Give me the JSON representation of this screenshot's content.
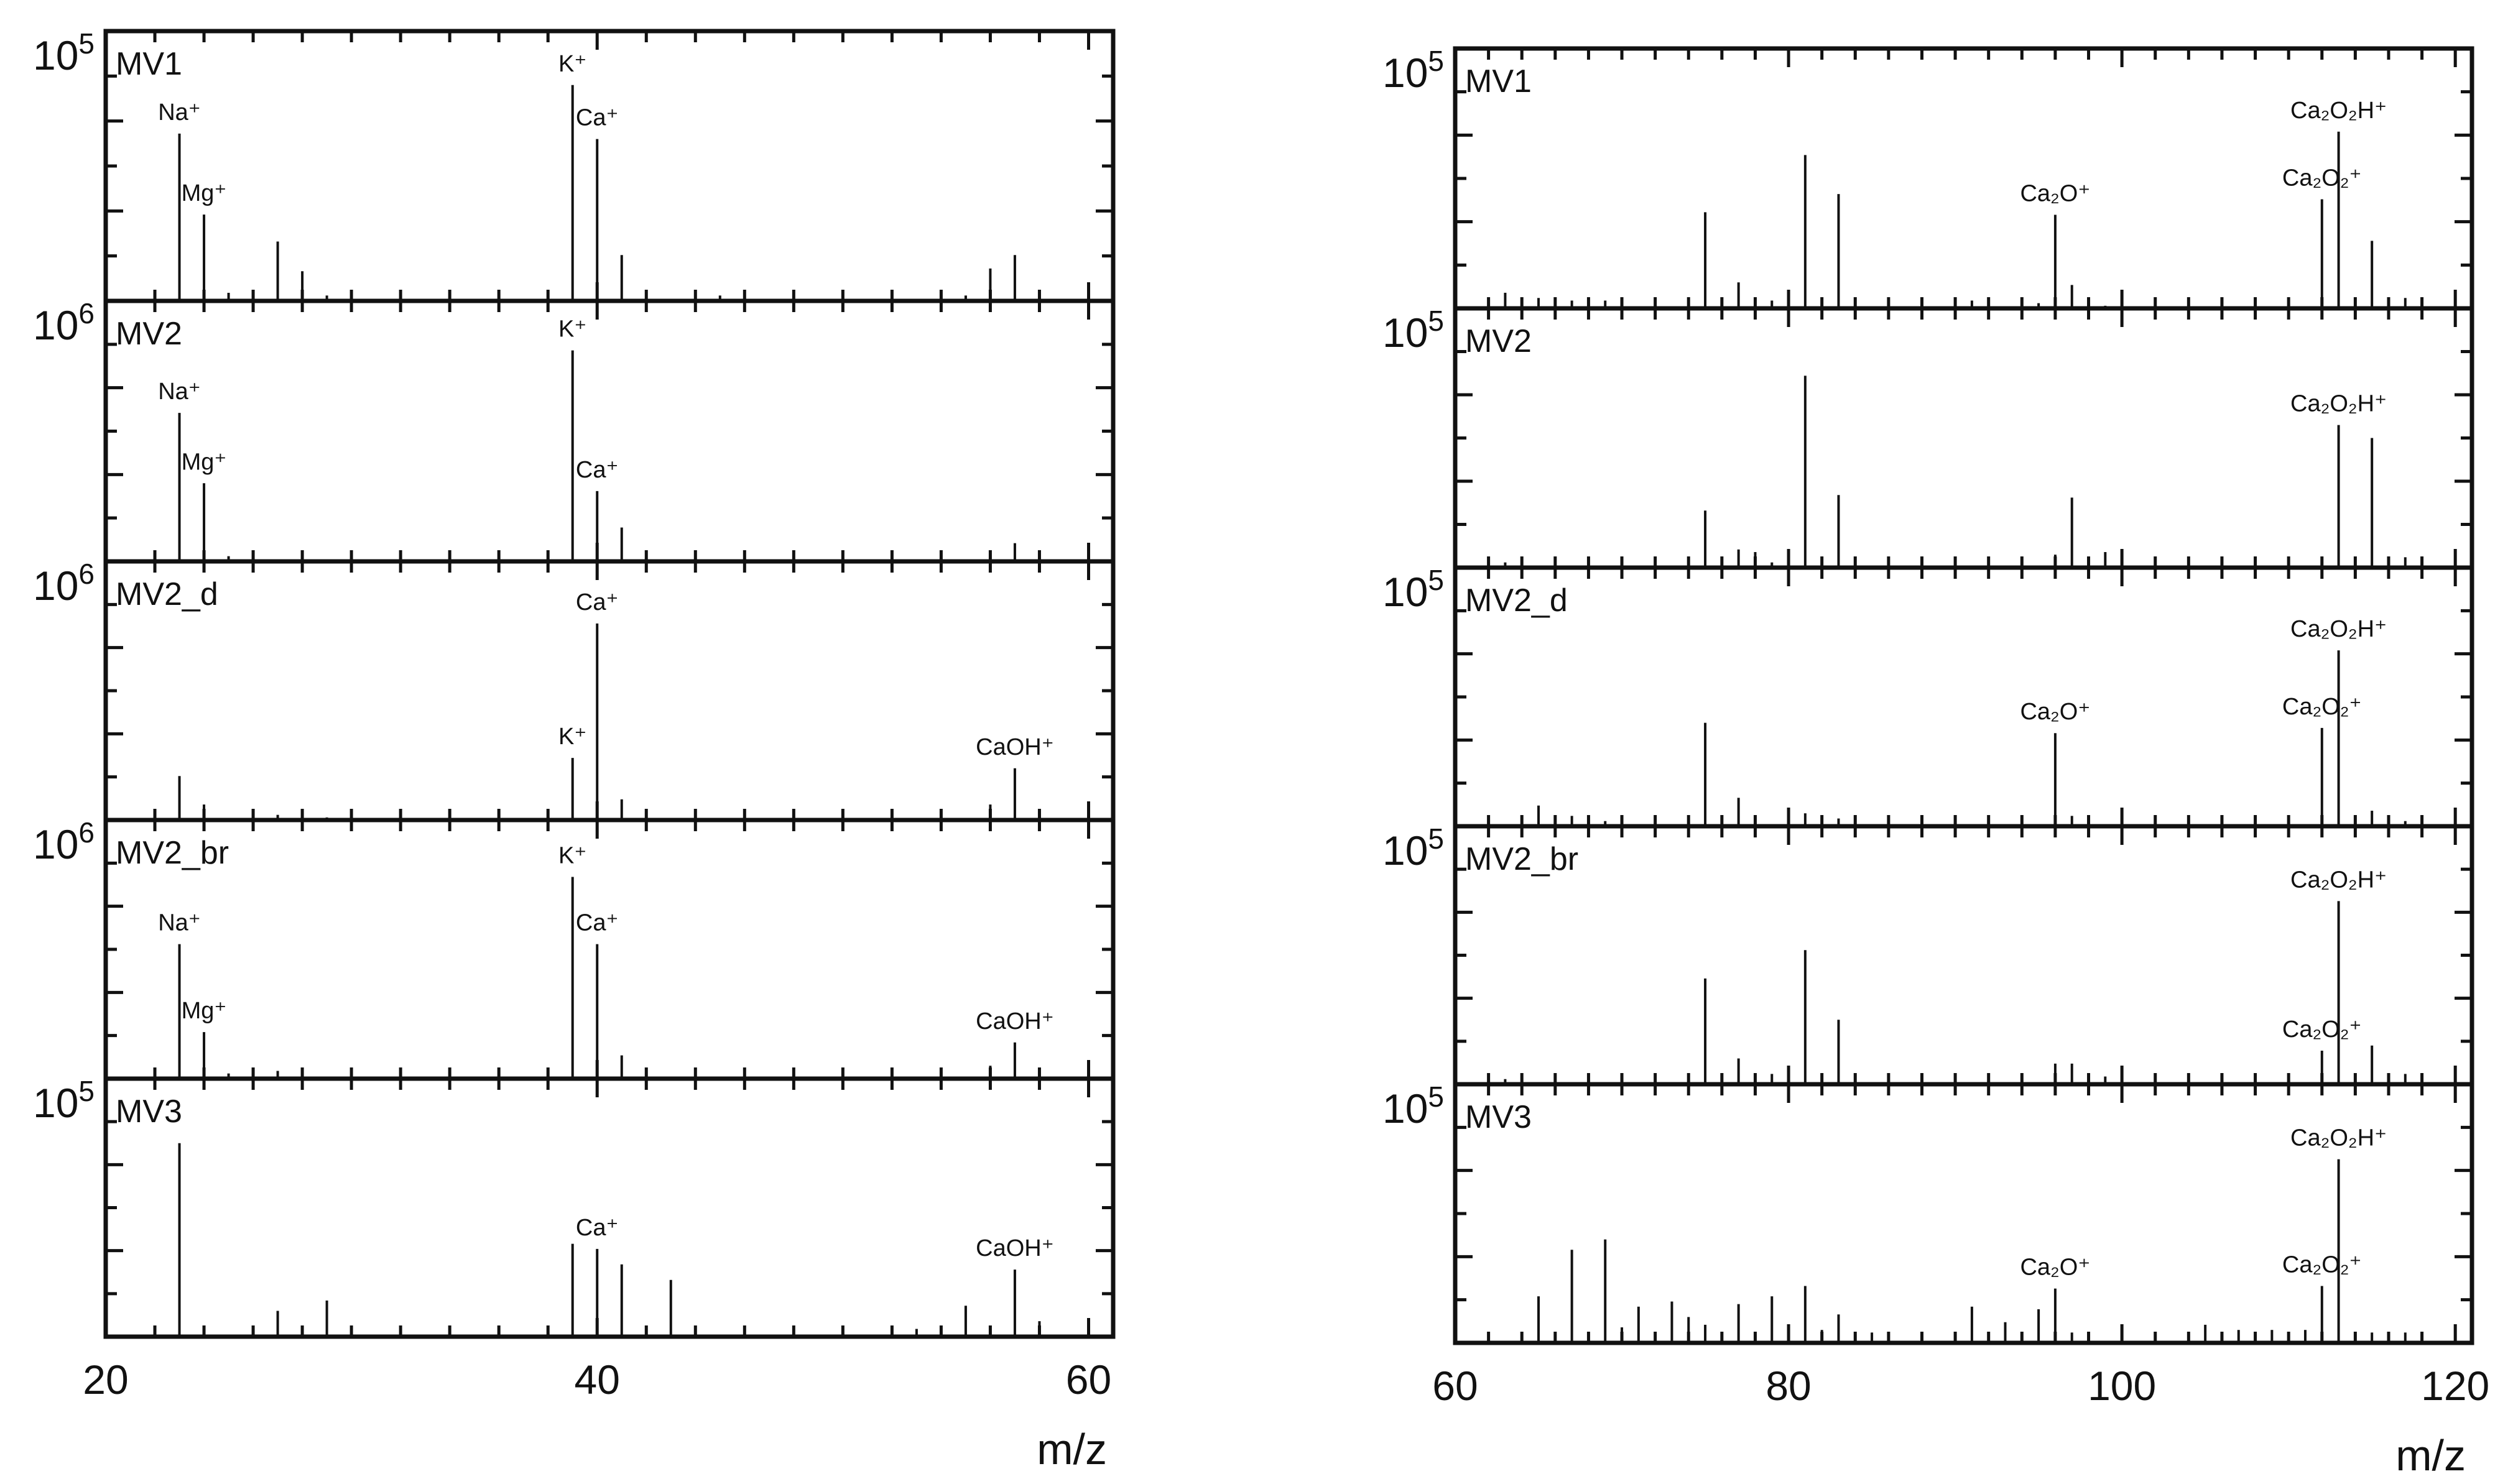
{
  "chart_data": [
    {
      "type": "line",
      "x_ticks": [
        20,
        40,
        60
      ],
      "xlim": [
        20,
        61
      ],
      "xlabel": "m/z",
      "panels": [
        {
          "name": "MV1",
          "ymax_label": "10",
          "ymax_exp": "5",
          "peaks": [
            [
              23,
              0.62
            ],
            [
              24,
              0.32
            ],
            [
              25,
              0.03
            ],
            [
              26,
              0.04
            ],
            [
              27,
              0.22
            ],
            [
              28,
              0.11
            ],
            [
              29,
              0.02
            ],
            [
              39,
              0.8
            ],
            [
              40,
              0.6
            ],
            [
              41,
              0.17
            ],
            [
              44,
              0.01
            ],
            [
              45,
              0.02
            ],
            [
              46,
              0.04
            ],
            [
              55,
              0.02
            ],
            [
              56,
              0.12
            ],
            [
              57,
              0.17
            ]
          ],
          "labels": [
            {
              "text": "Na⁺",
              "x": 23,
              "y": 0.62
            },
            {
              "text": "Mg⁺",
              "x": 24,
              "y": 0.32
            },
            {
              "text": "K⁺",
              "x": 39,
              "y": 0.8
            },
            {
              "text": "Ca⁺",
              "x": 40,
              "y": 0.6
            }
          ]
        },
        {
          "name": "MV2",
          "ymax_label": "10",
          "ymax_exp": "6",
          "peaks": [
            [
              23,
              0.57
            ],
            [
              24,
              0.3
            ],
            [
              25,
              0.02
            ],
            [
              26,
              0.03
            ],
            [
              39,
              0.81
            ],
            [
              40,
              0.27
            ],
            [
              41,
              0.13
            ],
            [
              46,
              0.01
            ],
            [
              56,
              0.02
            ],
            [
              57,
              0.07
            ]
          ],
          "labels": [
            {
              "text": "Na⁺",
              "x": 23,
              "y": 0.57
            },
            {
              "text": "Mg⁺",
              "x": 24,
              "y": 0.3
            },
            {
              "text": "K⁺",
              "x": 39,
              "y": 0.81
            },
            {
              "text": "Ca⁺",
              "x": 40,
              "y": 0.27
            }
          ]
        },
        {
          "name": "MV2_d",
          "ymax_label": "10",
          "ymax_exp": "6",
          "peaks": [
            [
              23,
              0.17
            ],
            [
              24,
              0.06
            ],
            [
              27,
              0.02
            ],
            [
              29,
              0.01
            ],
            [
              39,
              0.24
            ],
            [
              40,
              0.76
            ],
            [
              41,
              0.08
            ],
            [
              56,
              0.06
            ],
            [
              57,
              0.2
            ]
          ],
          "labels": [
            {
              "text": "K⁺",
              "x": 39,
              "y": 0.24
            },
            {
              "text": "Ca⁺",
              "x": 40,
              "y": 0.76
            },
            {
              "text": "CaOH⁺",
              "x": 57,
              "y": 0.2
            }
          ]
        },
        {
          "name": "MV2_br",
          "ymax_label": "10",
          "ymax_exp": "6",
          "peaks": [
            [
              23,
              0.52
            ],
            [
              24,
              0.18
            ],
            [
              25,
              0.02
            ],
            [
              26,
              0.02
            ],
            [
              27,
              0.03
            ],
            [
              28,
              0.03
            ],
            [
              39,
              0.78
            ],
            [
              40,
              0.52
            ],
            [
              41,
              0.09
            ],
            [
              56,
              0.05
            ],
            [
              57,
              0.14
            ]
          ],
          "labels": [
            {
              "text": "Na⁺",
              "x": 23,
              "y": 0.52
            },
            {
              "text": "Mg⁺",
              "x": 24,
              "y": 0.18
            },
            {
              "text": "K⁺",
              "x": 39,
              "y": 0.78
            },
            {
              "text": "Ca⁺",
              "x": 40,
              "y": 0.52
            },
            {
              "text": "CaOH⁺",
              "x": 57,
              "y": 0.14
            }
          ]
        },
        {
          "name": "MV3",
          "ymax_label": "10",
          "ymax_exp": "5",
          "peaks": [
            [
              23,
              0.75
            ],
            [
              27,
              0.1
            ],
            [
              29,
              0.14
            ],
            [
              39,
              0.36
            ],
            [
              40,
              0.34
            ],
            [
              41,
              0.28
            ],
            [
              43,
              0.22
            ],
            [
              53,
              0.03
            ],
            [
              55,
              0.12
            ],
            [
              57,
              0.26
            ],
            [
              58,
              0.06
            ]
          ],
          "labels": [
            {
              "text": "Ca⁺",
              "x": 40,
              "y": 0.34
            },
            {
              "text": "CaOH⁺",
              "x": 57,
              "y": 0.26
            }
          ]
        }
      ]
    },
    {
      "type": "line",
      "x_ticks": [
        60,
        80,
        100,
        120
      ],
      "xlim": [
        60,
        121
      ],
      "xlabel": "m/z",
      "panels": [
        {
          "name": "MV1",
          "ymax_label": "10",
          "ymax_exp": "5",
          "peaks": [
            [
              62,
              0.02
            ],
            [
              63,
              0.06
            ],
            [
              65,
              0.04
            ],
            [
              67,
              0.03
            ],
            [
              69,
              0.03
            ],
            [
              75,
              0.37
            ],
            [
              77,
              0.1
            ],
            [
              78,
              0.03
            ],
            [
              79,
              0.03
            ],
            [
              80,
              0.03
            ],
            [
              81,
              0.59
            ],
            [
              83,
              0.44
            ],
            [
              91,
              0.03
            ],
            [
              95,
              0.02
            ],
            [
              96,
              0.36
            ],
            [
              97,
              0.09
            ],
            [
              98,
              0.02
            ],
            [
              99,
              0.01
            ],
            [
              112,
              0.42
            ],
            [
              113,
              0.68
            ],
            [
              115,
              0.26
            ],
            [
              117,
              0.04
            ]
          ],
          "labels": [
            {
              "text": "Ca₂O⁺",
              "x": 96,
              "y": 0.36
            },
            {
              "text": "Ca₂O₂⁺",
              "x": 112,
              "y": 0.42
            },
            {
              "text": "Ca₂O₂H⁺",
              "x": 113,
              "y": 0.68
            }
          ]
        },
        {
          "name": "MV2",
          "ymax_label": "10",
          "ymax_exp": "5",
          "peaks": [
            [
              62,
              0.02
            ],
            [
              63,
              0.02
            ],
            [
              75,
              0.22
            ],
            [
              77,
              0.07
            ],
            [
              78,
              0.06
            ],
            [
              79,
              0.02
            ],
            [
              81,
              0.74
            ],
            [
              83,
              0.28
            ],
            [
              96,
              0.05
            ],
            [
              97,
              0.27
            ],
            [
              99,
              0.06
            ],
            [
              112,
              0.04
            ],
            [
              113,
              0.55
            ],
            [
              115,
              0.5
            ],
            [
              117,
              0.04
            ]
          ],
          "labels": [
            {
              "text": "Ca₂O₂H⁺",
              "x": 113,
              "y": 0.55
            }
          ]
        },
        {
          "name": "MV2_d",
          "ymax_label": "10",
          "ymax_exp": "5",
          "peaks": [
            [
              65,
              0.08
            ],
            [
              67,
              0.04
            ],
            [
              69,
              0.02
            ],
            [
              75,
              0.4
            ],
            [
              77,
              0.11
            ],
            [
              78,
              0.03
            ],
            [
              81,
              0.05
            ],
            [
              83,
              0.03
            ],
            [
              96,
              0.36
            ],
            [
              97,
              0.04
            ],
            [
              112,
              0.38
            ],
            [
              113,
              0.68
            ],
            [
              115,
              0.06
            ],
            [
              117,
              0.02
            ]
          ],
          "labels": [
            {
              "text": "Ca₂O⁺",
              "x": 96,
              "y": 0.36
            },
            {
              "text": "Ca₂O₂⁺",
              "x": 112,
              "y": 0.38
            },
            {
              "text": "Ca₂O₂H⁺",
              "x": 113,
              "y": 0.68
            }
          ]
        },
        {
          "name": "MV2_br",
          "ymax_label": "10",
          "ymax_exp": "5",
          "peaks": [
            [
              62,
              0.02
            ],
            [
              63,
              0.02
            ],
            [
              75,
              0.41
            ],
            [
              77,
              0.1
            ],
            [
              79,
              0.04
            ],
            [
              80,
              0.05
            ],
            [
              81,
              0.52
            ],
            [
              83,
              0.25
            ],
            [
              96,
              0.08
            ],
            [
              97,
              0.08
            ],
            [
              99,
              0.03
            ],
            [
              112,
              0.13
            ],
            [
              113,
              0.71
            ],
            [
              115,
              0.15
            ],
            [
              117,
              0.04
            ]
          ],
          "labels": [
            {
              "text": "Ca₂O₂⁺",
              "x": 112,
              "y": 0.13
            },
            {
              "text": "Ca₂O₂H⁺",
              "x": 113,
              "y": 0.71
            }
          ]
        },
        {
          "name": "MV3",
          "ymax_label": "10",
          "ymax_exp": "5",
          "peaks": [
            [
              65,
              0.18
            ],
            [
              67,
              0.36
            ],
            [
              69,
              0.4
            ],
            [
              70,
              0.06
            ],
            [
              71,
              0.14
            ],
            [
              73,
              0.16
            ],
            [
              74,
              0.1
            ],
            [
              75,
              0.07
            ],
            [
              77,
              0.15
            ],
            [
              79,
              0.18
            ],
            [
              80,
              0.04
            ],
            [
              81,
              0.22
            ],
            [
              82,
              0.05
            ],
            [
              83,
              0.11
            ],
            [
              84,
              0.03
            ],
            [
              85,
              0.04
            ],
            [
              91,
              0.14
            ],
            [
              93,
              0.08
            ],
            [
              95,
              0.13
            ],
            [
              96,
              0.21
            ],
            [
              97,
              0.04
            ],
            [
              105,
              0.07
            ],
            [
              107,
              0.05
            ],
            [
              109,
              0.05
            ],
            [
              111,
              0.05
            ],
            [
              112,
              0.22
            ],
            [
              113,
              0.71
            ],
            [
              115,
              0.04
            ],
            [
              117,
              0.04
            ]
          ],
          "labels": [
            {
              "text": "Ca₂O⁺",
              "x": 96,
              "y": 0.21
            },
            {
              "text": "Ca₂O₂⁺",
              "x": 112,
              "y": 0.22
            },
            {
              "text": "Ca₂O₂H⁺",
              "x": 113,
              "y": 0.71
            }
          ]
        }
      ]
    }
  ]
}
